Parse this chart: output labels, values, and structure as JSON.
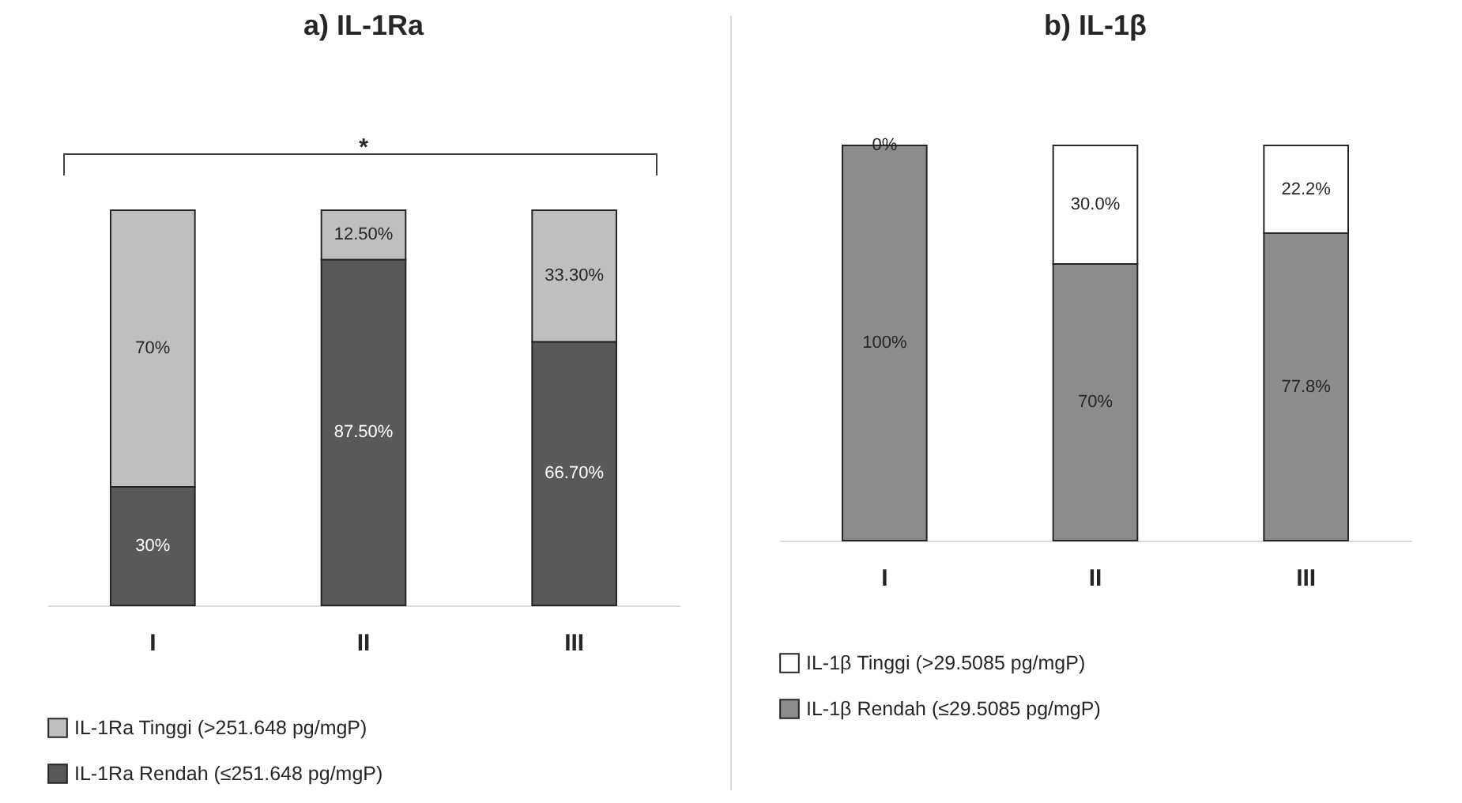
{
  "chart_data": [
    {
      "type": "bar",
      "title": "a) IL-1Ra",
      "categories": [
        "I",
        "II",
        "III"
      ],
      "stacked": true,
      "legend": "bottom",
      "annotations": [
        "*"
      ],
      "series": [
        {
          "name": "IL-1Ra Rendah (≤251.648 pg/mgP)",
          "color": "#595959",
          "values": [
            30,
            87.5,
            66.7
          ],
          "value_labels": [
            "30%",
            "87.50%",
            "66.70%"
          ]
        },
        {
          "name": "IL-1Ra Tinggi (>251.648 pg/mgP)",
          "color": "#bfbfbf",
          "values": [
            70,
            12.5,
            33.3
          ],
          "value_labels": [
            "70%",
            "12.50%",
            "33.30%"
          ]
        }
      ]
    },
    {
      "type": "bar",
      "title": "b) IL-1β",
      "categories": [
        "I",
        "II",
        "III"
      ],
      "stacked": true,
      "legend": "bottom",
      "series": [
        {
          "name": "IL-1β Rendah (≤29.5085 pg/mgP)",
          "color": "#8c8c8c",
          "values": [
            100,
            70,
            77.8
          ],
          "value_labels": [
            "100%",
            "70%",
            "77.8%"
          ]
        },
        {
          "name": "IL-1β Tinggi (>29.5085 pg/mgP)",
          "color": "#ffffff",
          "values": [
            0,
            30.0,
            22.2
          ],
          "value_labels": [
            "0%",
            "30.0%",
            "22.2%"
          ]
        }
      ]
    }
  ]
}
